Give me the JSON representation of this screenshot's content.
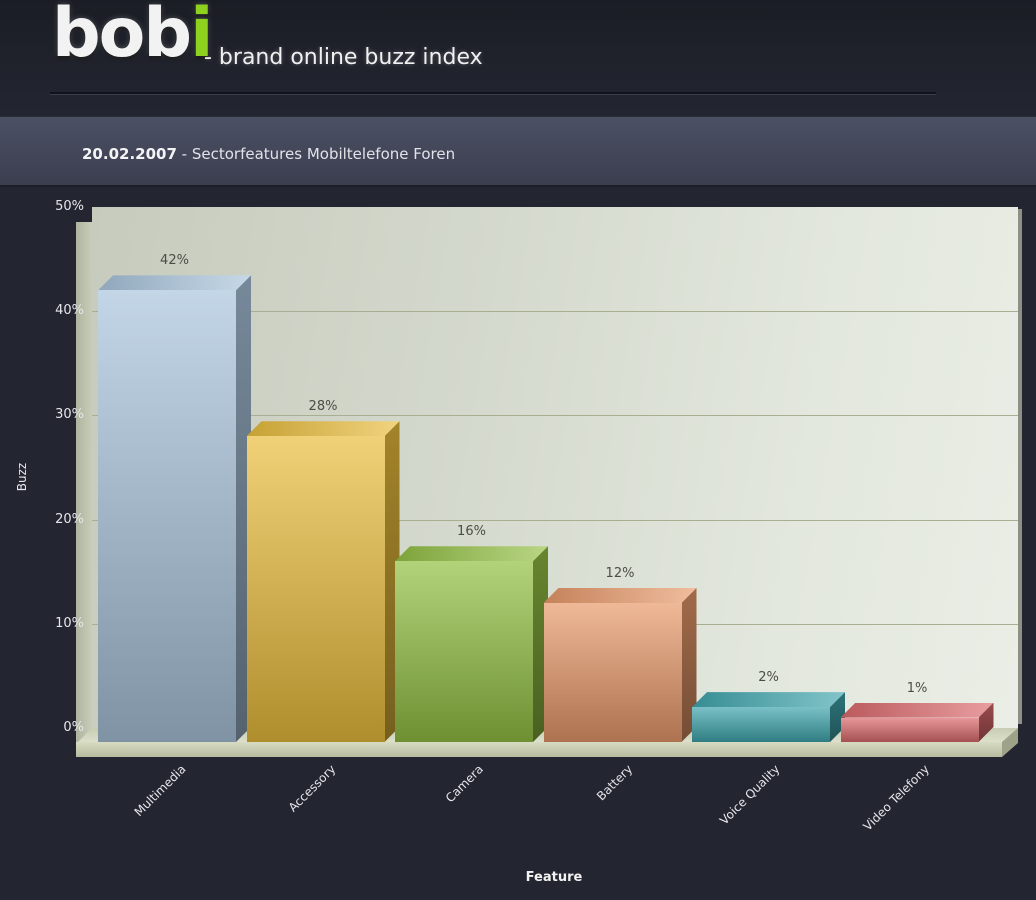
{
  "header": {
    "logo_main": "bob",
    "logo_accent": "i",
    "tagline": "- brand online buzz index",
    "accent_color": "#8fd11f"
  },
  "title_bar": {
    "date": "20.02.2007",
    "separator": " - ",
    "title": "Sectorfeatures Mobiltelefone Foren"
  },
  "chart_data": {
    "type": "bar",
    "style": "3d-column",
    "title": "20.02.2007 - Sectorfeatures Mobiltelefone Foren",
    "xlabel": "Feature",
    "ylabel": "Buzz",
    "ylim": [
      0,
      50
    ],
    "yticks": [
      "0%",
      "10%",
      "20%",
      "30%",
      "40%",
      "50%"
    ],
    "grid": true,
    "legend": "none",
    "categories": [
      "Multimedia",
      "Accessory",
      "Camera",
      "Battery",
      "Voice Quality",
      "Video Telefony"
    ],
    "values": [
      42,
      28,
      16,
      12,
      2,
      1
    ],
    "value_labels": [
      "42%",
      "28%",
      "16%",
      "12%",
      "2%",
      "1%"
    ],
    "colors": [
      "#a9c4dc",
      "#e9bd3c",
      "#93c043",
      "#e8996a",
      "#3fa6ad",
      "#dc6a6d"
    ]
  }
}
